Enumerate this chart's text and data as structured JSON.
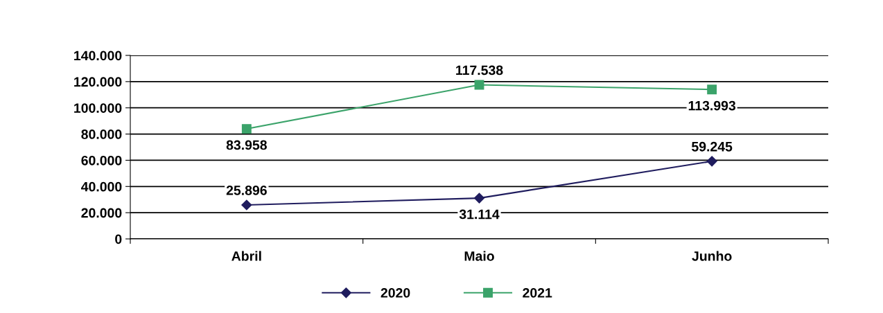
{
  "chart_data": {
    "type": "line",
    "categories": [
      "Abril",
      "Maio",
      "Junho"
    ],
    "series": [
      {
        "name": "2020",
        "color": "#1f1c5e",
        "marker": "diamond",
        "values": [
          25896,
          31114,
          59245
        ],
        "value_labels": [
          "25.896",
          "31.114",
          "59.245"
        ]
      },
      {
        "name": "2021",
        "color": "#3ba36a",
        "marker": "square",
        "values": [
          83958,
          117538,
          113993
        ],
        "value_labels": [
          "83.958",
          "117.538",
          "113.993"
        ]
      }
    ],
    "ylim": [
      0,
      140000
    ],
    "yticks": [
      {
        "value": 0,
        "label": "0"
      },
      {
        "value": 20000,
        "label": "20.000"
      },
      {
        "value": 40000,
        "label": "40.000"
      },
      {
        "value": 60000,
        "label": "60.000"
      },
      {
        "value": 80000,
        "label": "80.000"
      },
      {
        "value": 100000,
        "label": "100.000"
      },
      {
        "value": 120000,
        "label": "120.000"
      },
      {
        "value": 140000,
        "label": "140.000"
      }
    ],
    "grid": "y",
    "legend": "bottom",
    "line_style": "solid"
  }
}
